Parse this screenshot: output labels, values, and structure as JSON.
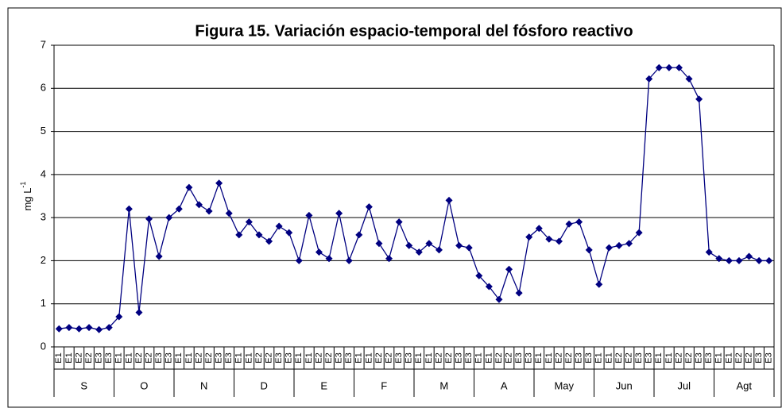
{
  "chart_data": {
    "type": "line",
    "title": "Figura 15. Variación espacio-temporal del fósforo reactivo",
    "ylabel": "mg L",
    "ylabel_sup": "-1",
    "categories": [
      "E1",
      "E1",
      "E2",
      "E2",
      "E3",
      "E3",
      "E1",
      "E1",
      "E2",
      "E2",
      "E3",
      "E3",
      "E1",
      "E1",
      "E2",
      "E2",
      "E3",
      "E3",
      "E1",
      "E1",
      "E2",
      "E2",
      "E3",
      "E3",
      "E1",
      "E1",
      "E2",
      "E2",
      "E3",
      "E3",
      "E1",
      "E1",
      "E2",
      "E2",
      "E3",
      "E3",
      "E1",
      "E1",
      "E2",
      "E2",
      "E3",
      "E3",
      "E1",
      "E1",
      "E2",
      "E2",
      "E3",
      "E3",
      "E1",
      "E1",
      "E2",
      "E2",
      "E3",
      "E3",
      "E1",
      "E1",
      "E2",
      "E2",
      "E3",
      "E3",
      "E1",
      "E1",
      "E2",
      "E2",
      "E3",
      "E3",
      "E1",
      "E1",
      "E2",
      "E2",
      "E3",
      "E3"
    ],
    "groups": [
      "S",
      "O",
      "N",
      "D",
      "E",
      "F",
      "M",
      "A",
      "May",
      "Jun",
      "Jul",
      "Agt"
    ],
    "series": [
      {
        "color": "#000080",
        "values": [
          0.42,
          0.45,
          0.42,
          0.45,
          0.4,
          0.45,
          0.7,
          3.2,
          0.8,
          2.97,
          2.1,
          3.0,
          3.2,
          3.7,
          3.3,
          3.15,
          3.8,
          3.1,
          2.6,
          2.9,
          2.6,
          2.45,
          2.8,
          2.65,
          2.0,
          3.05,
          2.2,
          2.05,
          3.1,
          2.0,
          2.6,
          3.25,
          2.4,
          2.05,
          2.9,
          2.35,
          2.2,
          2.4,
          2.25,
          3.4,
          2.35,
          2.3,
          1.65,
          1.4,
          1.1,
          1.8,
          1.25,
          2.55,
          2.75,
          2.5,
          2.45,
          2.85,
          2.9,
          2.25,
          1.45,
          2.3,
          2.35,
          2.4,
          2.65,
          6.22,
          6.48,
          6.48,
          6.48,
          6.22,
          5.75,
          2.2,
          2.05,
          2.0,
          2.0,
          2.1,
          2.0,
          2.0
        ]
      }
    ],
    "ylim": [
      0,
      7
    ],
    "yticks": [
      0,
      1,
      2,
      3,
      4,
      5,
      6,
      7
    ],
    "grid": true
  }
}
